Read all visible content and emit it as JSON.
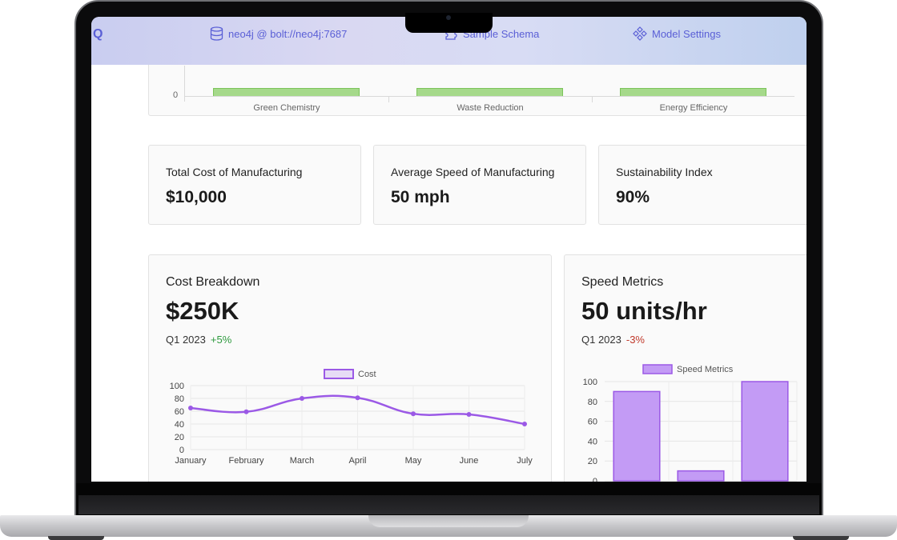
{
  "nav": {
    "logo": "Q",
    "db_label": "neo4j @ bolt://neo4j:7687",
    "schema_label": "Sample Schema",
    "settings_label": "Model Settings"
  },
  "top_chart": {
    "y_tick": "0",
    "categories": [
      "Green Chemistry",
      "Waste Reduction",
      "Energy Efficiency"
    ]
  },
  "kpis": [
    {
      "label": "Total Cost of Manufacturing",
      "value": "$10,000"
    },
    {
      "label": "Average Speed of Manufacturing",
      "value": "50 mph"
    },
    {
      "label": "Sustainability Index",
      "value": "90%"
    }
  ],
  "cost_card": {
    "title": "Cost Breakdown",
    "value": "$250K",
    "period": "Q1 2023",
    "delta": "+5%"
  },
  "speed_card": {
    "title": "Speed Metrics",
    "value": "50 units/hr",
    "period": "Q1 2023",
    "delta": "-3%"
  },
  "colors": {
    "accent": "#5a5fd6",
    "line": "#9b59e6",
    "bar_fill": "#c39bf5",
    "bar_stroke": "#9b59e6",
    "green_bar": "#a5d98a"
  },
  "chart_data": [
    {
      "type": "line",
      "legend": "Cost",
      "categories": [
        "January",
        "February",
        "March",
        "April",
        "May",
        "June",
        "July"
      ],
      "series": [
        {
          "name": "Cost",
          "values": [
            65,
            59,
            80,
            81,
            56,
            55,
            40
          ]
        }
      ],
      "yticks": [
        "0",
        "20",
        "40",
        "60",
        "80",
        "100"
      ],
      "ylim": [
        0,
        100
      ],
      "grid": true,
      "legend_position": "top"
    },
    {
      "type": "bar",
      "legend": "Speed Metrics",
      "series": [
        {
          "name": "Speed Metrics",
          "values": [
            90,
            10,
            100
          ]
        }
      ],
      "yticks": [
        "0",
        "20",
        "40",
        "60",
        "80",
        "100"
      ],
      "ylim": [
        0,
        100
      ],
      "grid": true,
      "legend_position": "top"
    }
  ]
}
